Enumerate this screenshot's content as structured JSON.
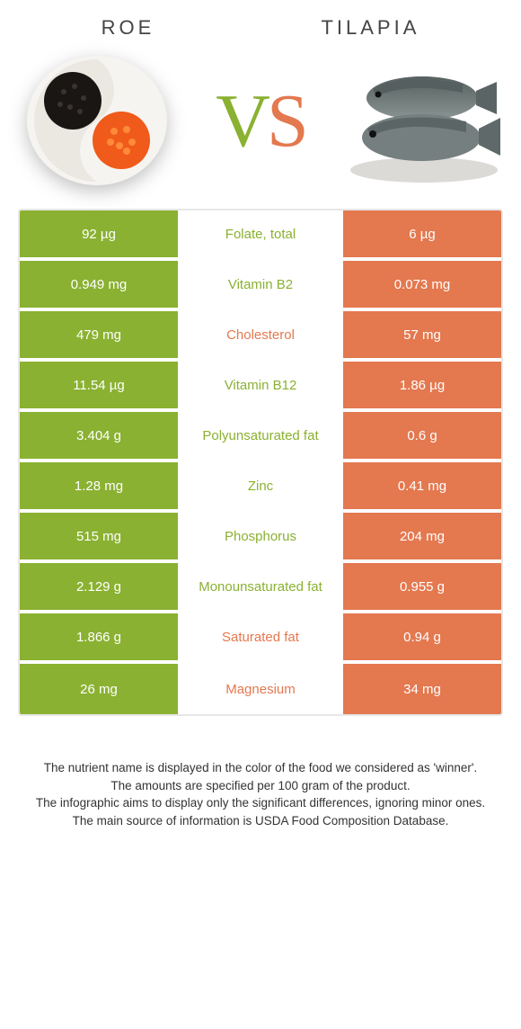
{
  "colors": {
    "green": "#8ab131",
    "orange": "#e4784f",
    "vs_v": "#8ab131",
    "vs_s": "#e4784f"
  },
  "left": {
    "title": "Roe"
  },
  "right": {
    "title": "Tilapia"
  },
  "rows": [
    {
      "nutrient": "Folate, total",
      "left": "92 µg",
      "right": "6 µg",
      "winner": "left"
    },
    {
      "nutrient": "Vitamin B2",
      "left": "0.949 mg",
      "right": "0.073 mg",
      "winner": "left"
    },
    {
      "nutrient": "Cholesterol",
      "left": "479 mg",
      "right": "57 mg",
      "winner": "right"
    },
    {
      "nutrient": "Vitamin B12",
      "left": "11.54 µg",
      "right": "1.86 µg",
      "winner": "left"
    },
    {
      "nutrient": "Polyunsaturated fat",
      "left": "3.404 g",
      "right": "0.6 g",
      "winner": "left"
    },
    {
      "nutrient": "Zinc",
      "left": "1.28 mg",
      "right": "0.41 mg",
      "winner": "left"
    },
    {
      "nutrient": "Phosphorus",
      "left": "515 mg",
      "right": "204 mg",
      "winner": "left"
    },
    {
      "nutrient": "Monounsaturated fat",
      "left": "2.129 g",
      "right": "0.955 g",
      "winner": "left"
    },
    {
      "nutrient": "Saturated fat",
      "left": "1.866 g",
      "right": "0.94 g",
      "winner": "right"
    },
    {
      "nutrient": "Magnesium",
      "left": "26 mg",
      "right": "34 mg",
      "winner": "right"
    }
  ],
  "footer": {
    "l1": "The nutrient name is displayed in the color of the food we considered as 'winner'.",
    "l2": "The amounts are specified per 100 gram of the product.",
    "l3": "The infographic aims to display only the significant differences, ignoring minor ones.",
    "l4": "The main source of information is USDA Food Composition Database."
  }
}
